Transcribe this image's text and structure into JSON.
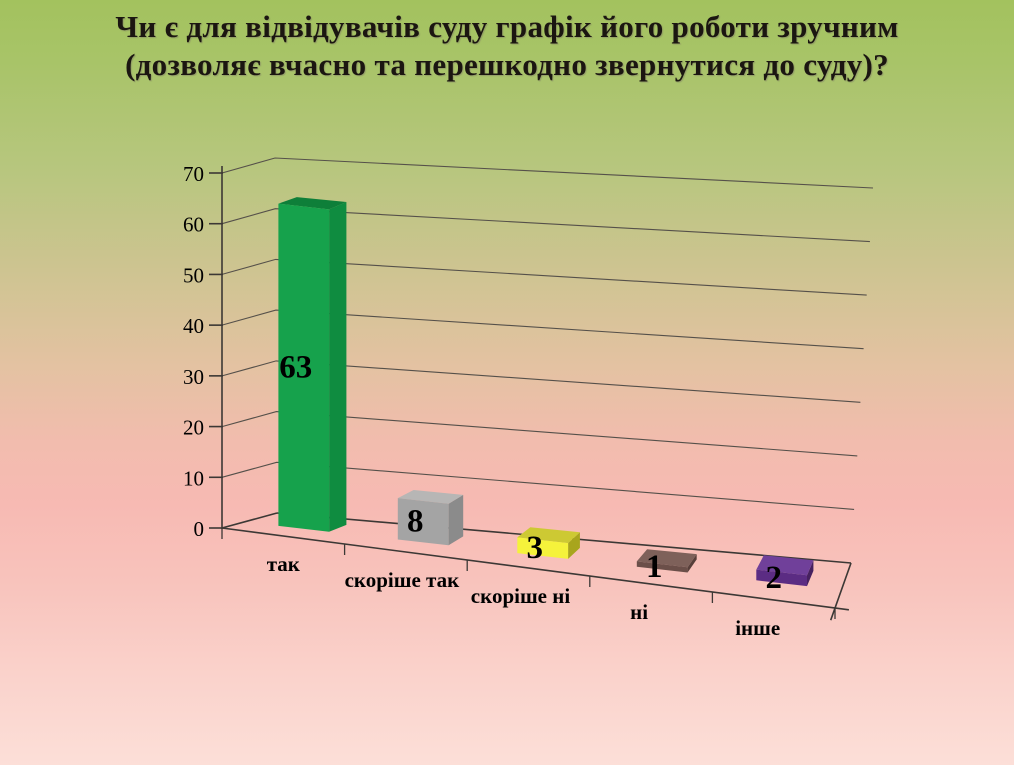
{
  "slide": {
    "title_line1": "Чи є для відвідувачів суду графік його роботи зручним",
    "title_line2": "(дозволяє вчасно та перешкодно звернутися до суду)?"
  },
  "chart_data": {
    "type": "bar",
    "projection": "3d-perspective",
    "title": "Чи є для відвідувачів суду графік його роботи зручним (дозволяє вчасно та перешкодно звернутися до суду)?",
    "categories": [
      "так",
      "скоріше так",
      "скоріше ні",
      "ні",
      "інше"
    ],
    "values": [
      63,
      8,
      3,
      1,
      2
    ],
    "data_labels": [
      "63",
      "8",
      "3",
      "1",
      "2"
    ],
    "ylim": [
      0,
      70
    ],
    "yticks": [
      0,
      10,
      20,
      30,
      40,
      50,
      60,
      70
    ],
    "grid": true,
    "legend": false,
    "xlabel": "",
    "ylabel": "",
    "bar_colors": [
      {
        "name": "green",
        "front": "#16A24C",
        "top": "#0E7F39",
        "side": "#0F8C40"
      },
      {
        "name": "gray",
        "front": "#A4A4A4",
        "top": "#B7B6B5",
        "side": "#8B8B8B"
      },
      {
        "name": "yellow",
        "front": "#F5F23B",
        "top": "#CDC933",
        "side": "#A8A51D"
      },
      {
        "name": "brown",
        "front": "#6B4F49",
        "top": "#7E615A",
        "side": "#573F3A"
      },
      {
        "name": "purple",
        "front": "#5B2C83",
        "top": "#70409A",
        "side": "#46215F"
      }
    ],
    "label_color": "#000000",
    "axis_color": "#3C3835",
    "grid_color": "#55504A"
  },
  "background": {
    "gradient_top": "#A3C25E",
    "gradient_middle": "#E8C2A6",
    "gradient_bottom": "#FCDFD8"
  }
}
